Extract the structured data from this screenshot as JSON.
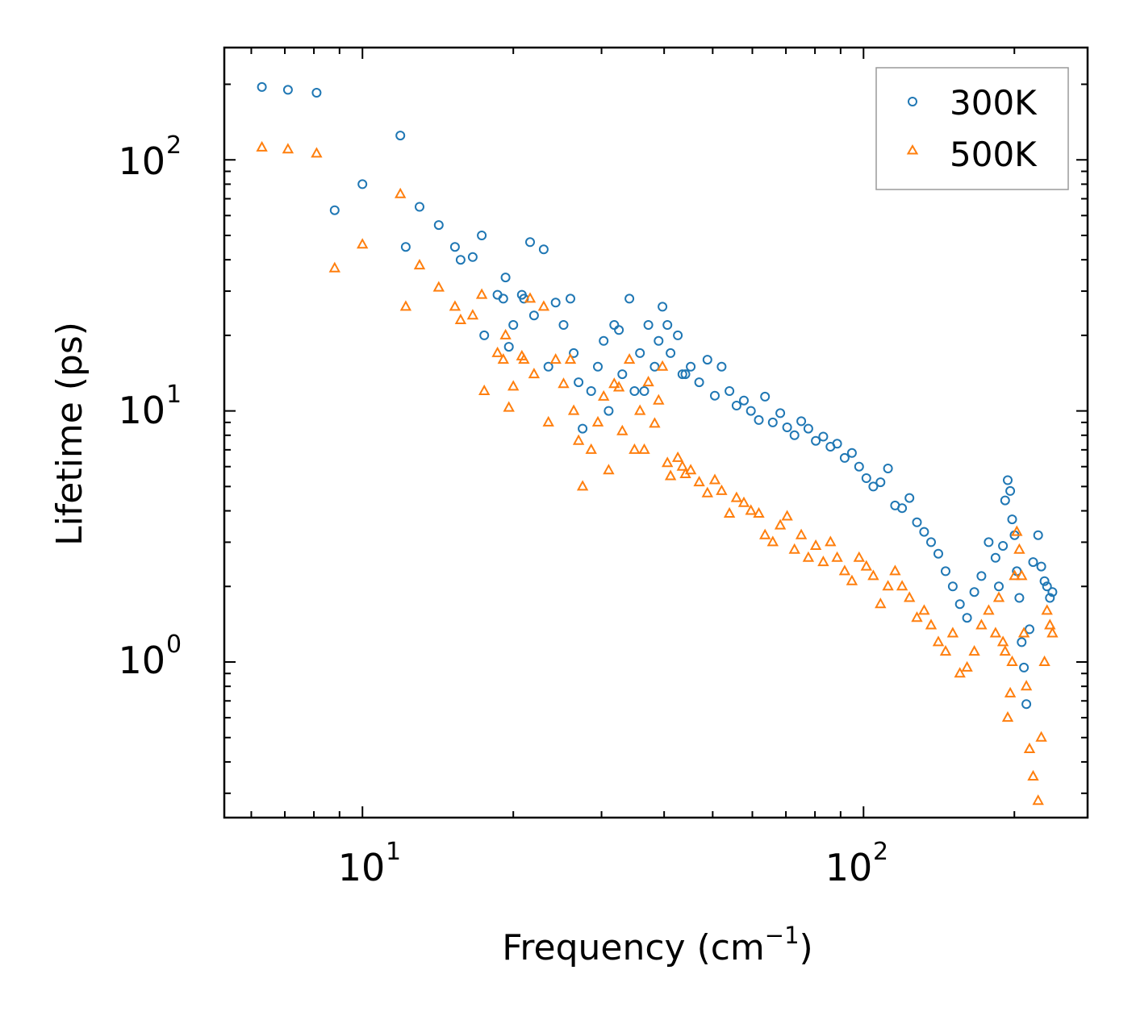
{
  "chart_data": {
    "type": "scatter",
    "xscale": "log",
    "yscale": "log",
    "xlim": [
      5.3,
      280
    ],
    "ylim": [
      0.24,
      280
    ],
    "xlabel": "Frequency (cm",
    "xlabel_sup": "−1",
    "xlabel_end": ")",
    "ylabel": "Lifetime (ps)",
    "x_ticks": [
      {
        "value": 10,
        "base": "10",
        "exp": "1"
      },
      {
        "value": 100,
        "base": "10",
        "exp": "2"
      }
    ],
    "y_ticks": [
      {
        "value": 1,
        "base": "10",
        "exp": "0"
      },
      {
        "value": 10,
        "base": "10",
        "exp": "1"
      },
      {
        "value": 100,
        "base": "10",
        "exp": "2"
      }
    ],
    "legend_position": "top-right",
    "series": [
      {
        "name": "300K",
        "marker": "circle",
        "color": "#1f77b4",
        "x": [
          6.3,
          7.1,
          8.1,
          8.8,
          10.0,
          11.9,
          12.2,
          13.0,
          14.2,
          15.3,
          15.7,
          16.6,
          17.3,
          17.5,
          18.6,
          19.1,
          19.3,
          19.6,
          20.0,
          20.8,
          21.0,
          21.6,
          22.0,
          23.0,
          23.5,
          24.3,
          25.2,
          26.0,
          26.4,
          27.0,
          27.5,
          28.6,
          29.5,
          30.3,
          31.0,
          31.8,
          32.5,
          33.0,
          34.1,
          34.9,
          35.8,
          36.5,
          37.2,
          38.3,
          39.0,
          39.7,
          40.6,
          41.2,
          42.6,
          43.5,
          44.1,
          45.2,
          47.0,
          48.8,
          50.5,
          52.1,
          54.0,
          55.8,
          57.7,
          59.6,
          61.8,
          63.6,
          65.9,
          68.2,
          70.4,
          72.8,
          75.1,
          77.6,
          80.3,
          83.1,
          85.9,
          88.6,
          91.7,
          94.8,
          98.0,
          101.3,
          104.6,
          108.1,
          111.9,
          115.6,
          119.4,
          123.5,
          127.8,
          132.1,
          136.4,
          141.0,
          145.8,
          150.7,
          155.7,
          160.9,
          166.4,
          171.9,
          177.7,
          183.4,
          186.2,
          189.8,
          191.7,
          194.0,
          196.2,
          198.0,
          200.2,
          202.3,
          204.6,
          206.8,
          209.0,
          211.3,
          214.4,
          218.0,
          223.1,
          226.3,
          229.7,
          232.4,
          235.5,
          238.2
        ],
        "y": [
          195,
          190,
          185,
          63,
          80,
          125,
          45,
          65,
          55,
          45,
          40,
          41,
          50,
          20,
          29,
          28,
          34,
          18,
          22,
          29,
          28,
          47,
          24,
          44,
          15,
          27,
          22,
          28,
          17,
          13,
          8.5,
          12,
          15,
          19,
          10,
          22,
          21,
          14,
          28,
          12,
          17,
          12,
          22,
          15,
          19,
          26,
          22,
          17,
          20,
          14,
          14,
          15,
          13,
          16,
          11.5,
          15,
          12,
          10.5,
          11,
          10,
          9.2,
          11.4,
          9.0,
          9.8,
          8.6,
          8.0,
          9.1,
          8.5,
          7.6,
          7.9,
          7.2,
          7.4,
          6.5,
          6.8,
          6.0,
          5.4,
          5.0,
          5.2,
          5.9,
          4.2,
          4.1,
          4.5,
          3.6,
          3.3,
          3.0,
          2.7,
          2.3,
          2.0,
          1.7,
          1.5,
          1.9,
          2.2,
          3.0,
          2.6,
          2.0,
          2.9,
          4.4,
          5.3,
          4.8,
          3.7,
          3.2,
          2.3,
          1.8,
          1.2,
          0.95,
          0.68,
          1.35,
          2.5,
          3.2,
          2.4,
          2.1,
          2.0,
          1.8,
          1.9
        ]
      },
      {
        "name": "500K",
        "marker": "triangle",
        "color": "#ff7f0e",
        "x": [
          6.3,
          7.1,
          8.1,
          8.8,
          10.0,
          11.9,
          12.2,
          13.0,
          14.2,
          15.3,
          15.7,
          16.6,
          17.3,
          17.5,
          18.6,
          19.1,
          19.3,
          19.6,
          20.0,
          20.8,
          21.0,
          21.6,
          22.0,
          23.0,
          23.5,
          24.3,
          25.2,
          26.0,
          26.4,
          27.0,
          27.5,
          28.6,
          29.5,
          30.3,
          31.0,
          31.8,
          32.5,
          33.0,
          34.1,
          34.9,
          35.8,
          36.5,
          37.2,
          38.3,
          39.0,
          39.7,
          40.6,
          41.2,
          42.6,
          43.5,
          44.1,
          45.2,
          47.0,
          48.8,
          50.5,
          52.1,
          54.0,
          55.8,
          57.7,
          59.6,
          61.8,
          63.6,
          65.9,
          68.2,
          70.4,
          72.8,
          75.1,
          77.6,
          80.3,
          83.1,
          85.9,
          88.6,
          91.7,
          94.8,
          98.0,
          101.3,
          104.6,
          108.1,
          111.9,
          115.6,
          119.4,
          123.5,
          127.8,
          132.1,
          136.4,
          141.0,
          145.8,
          150.7,
          155.7,
          160.9,
          166.4,
          171.9,
          177.7,
          183.4,
          186.2,
          189.8,
          191.7,
          194.0,
          196.2,
          198.0,
          200.2,
          202.3,
          204.6,
          206.8,
          209.0,
          211.3,
          214.4,
          218.0,
          223.1,
          226.3,
          229.7,
          232.4,
          235.5,
          238.2
        ],
        "y": [
          112,
          110,
          106,
          37,
          46,
          73,
          26,
          38,
          31,
          26,
          23,
          24,
          29,
          12,
          17,
          16,
          20,
          10.3,
          12.5,
          16.5,
          16,
          28,
          14,
          26,
          9,
          16,
          12.8,
          16,
          10,
          7.6,
          5.0,
          7.0,
          9,
          11.4,
          5.8,
          12.8,
          12.4,
          8.3,
          16,
          7,
          10,
          7,
          13,
          8.9,
          11,
          15,
          6.2,
          5.5,
          6.5,
          6.0,
          5.6,
          5.8,
          5.2,
          4.7,
          5.3,
          4.8,
          3.9,
          4.5,
          4.3,
          4.0,
          3.9,
          3.2,
          3.0,
          3.5,
          3.8,
          2.8,
          3.2,
          2.6,
          2.9,
          2.5,
          3.0,
          2.6,
          2.3,
          2.1,
          2.6,
          2.4,
          2.2,
          1.7,
          2.0,
          2.3,
          2.0,
          1.8,
          1.5,
          1.6,
          1.4,
          1.2,
          1.1,
          1.3,
          0.9,
          0.95,
          1.1,
          1.4,
          1.6,
          1.3,
          1.8,
          1.2,
          1.1,
          0.6,
          0.75,
          1.0,
          2.2,
          3.3,
          2.8,
          2.2,
          1.3,
          0.8,
          0.45,
          0.35,
          0.28,
          0.5,
          1.0,
          1.6,
          1.4,
          1.3
        ]
      }
    ]
  }
}
